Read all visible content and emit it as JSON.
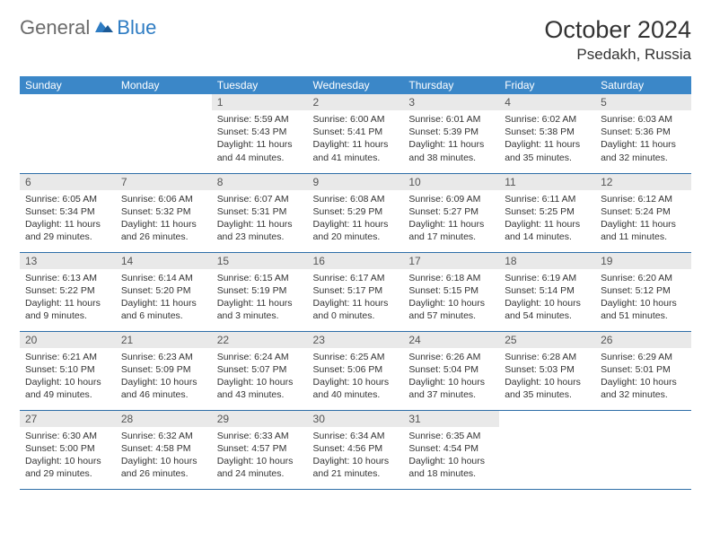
{
  "brand": {
    "part1": "General",
    "part2": "Blue"
  },
  "header": {
    "title": "October 2024",
    "location": "Psedakh, Russia"
  },
  "colors": {
    "header_bg": "#3b87c8",
    "header_text": "#ffffff",
    "daynum_bg": "#e9e9e9",
    "border": "#2e6ea8",
    "brand_gray": "#6b6b6b",
    "brand_blue": "#2e7cc3"
  },
  "weekdays": [
    "Sunday",
    "Monday",
    "Tuesday",
    "Wednesday",
    "Thursday",
    "Friday",
    "Saturday"
  ],
  "weeks": [
    [
      null,
      null,
      {
        "n": "1",
        "sr": "Sunrise: 5:59 AM",
        "ss": "Sunset: 5:43 PM",
        "dl": "Daylight: 11 hours and 44 minutes."
      },
      {
        "n": "2",
        "sr": "Sunrise: 6:00 AM",
        "ss": "Sunset: 5:41 PM",
        "dl": "Daylight: 11 hours and 41 minutes."
      },
      {
        "n": "3",
        "sr": "Sunrise: 6:01 AM",
        "ss": "Sunset: 5:39 PM",
        "dl": "Daylight: 11 hours and 38 minutes."
      },
      {
        "n": "4",
        "sr": "Sunrise: 6:02 AM",
        "ss": "Sunset: 5:38 PM",
        "dl": "Daylight: 11 hours and 35 minutes."
      },
      {
        "n": "5",
        "sr": "Sunrise: 6:03 AM",
        "ss": "Sunset: 5:36 PM",
        "dl": "Daylight: 11 hours and 32 minutes."
      }
    ],
    [
      {
        "n": "6",
        "sr": "Sunrise: 6:05 AM",
        "ss": "Sunset: 5:34 PM",
        "dl": "Daylight: 11 hours and 29 minutes."
      },
      {
        "n": "7",
        "sr": "Sunrise: 6:06 AM",
        "ss": "Sunset: 5:32 PM",
        "dl": "Daylight: 11 hours and 26 minutes."
      },
      {
        "n": "8",
        "sr": "Sunrise: 6:07 AM",
        "ss": "Sunset: 5:31 PM",
        "dl": "Daylight: 11 hours and 23 minutes."
      },
      {
        "n": "9",
        "sr": "Sunrise: 6:08 AM",
        "ss": "Sunset: 5:29 PM",
        "dl": "Daylight: 11 hours and 20 minutes."
      },
      {
        "n": "10",
        "sr": "Sunrise: 6:09 AM",
        "ss": "Sunset: 5:27 PM",
        "dl": "Daylight: 11 hours and 17 minutes."
      },
      {
        "n": "11",
        "sr": "Sunrise: 6:11 AM",
        "ss": "Sunset: 5:25 PM",
        "dl": "Daylight: 11 hours and 14 minutes."
      },
      {
        "n": "12",
        "sr": "Sunrise: 6:12 AM",
        "ss": "Sunset: 5:24 PM",
        "dl": "Daylight: 11 hours and 11 minutes."
      }
    ],
    [
      {
        "n": "13",
        "sr": "Sunrise: 6:13 AM",
        "ss": "Sunset: 5:22 PM",
        "dl": "Daylight: 11 hours and 9 minutes."
      },
      {
        "n": "14",
        "sr": "Sunrise: 6:14 AM",
        "ss": "Sunset: 5:20 PM",
        "dl": "Daylight: 11 hours and 6 minutes."
      },
      {
        "n": "15",
        "sr": "Sunrise: 6:15 AM",
        "ss": "Sunset: 5:19 PM",
        "dl": "Daylight: 11 hours and 3 minutes."
      },
      {
        "n": "16",
        "sr": "Sunrise: 6:17 AM",
        "ss": "Sunset: 5:17 PM",
        "dl": "Daylight: 11 hours and 0 minutes."
      },
      {
        "n": "17",
        "sr": "Sunrise: 6:18 AM",
        "ss": "Sunset: 5:15 PM",
        "dl": "Daylight: 10 hours and 57 minutes."
      },
      {
        "n": "18",
        "sr": "Sunrise: 6:19 AM",
        "ss": "Sunset: 5:14 PM",
        "dl": "Daylight: 10 hours and 54 minutes."
      },
      {
        "n": "19",
        "sr": "Sunrise: 6:20 AM",
        "ss": "Sunset: 5:12 PM",
        "dl": "Daylight: 10 hours and 51 minutes."
      }
    ],
    [
      {
        "n": "20",
        "sr": "Sunrise: 6:21 AM",
        "ss": "Sunset: 5:10 PM",
        "dl": "Daylight: 10 hours and 49 minutes."
      },
      {
        "n": "21",
        "sr": "Sunrise: 6:23 AM",
        "ss": "Sunset: 5:09 PM",
        "dl": "Daylight: 10 hours and 46 minutes."
      },
      {
        "n": "22",
        "sr": "Sunrise: 6:24 AM",
        "ss": "Sunset: 5:07 PM",
        "dl": "Daylight: 10 hours and 43 minutes."
      },
      {
        "n": "23",
        "sr": "Sunrise: 6:25 AM",
        "ss": "Sunset: 5:06 PM",
        "dl": "Daylight: 10 hours and 40 minutes."
      },
      {
        "n": "24",
        "sr": "Sunrise: 6:26 AM",
        "ss": "Sunset: 5:04 PM",
        "dl": "Daylight: 10 hours and 37 minutes."
      },
      {
        "n": "25",
        "sr": "Sunrise: 6:28 AM",
        "ss": "Sunset: 5:03 PM",
        "dl": "Daylight: 10 hours and 35 minutes."
      },
      {
        "n": "26",
        "sr": "Sunrise: 6:29 AM",
        "ss": "Sunset: 5:01 PM",
        "dl": "Daylight: 10 hours and 32 minutes."
      }
    ],
    [
      {
        "n": "27",
        "sr": "Sunrise: 6:30 AM",
        "ss": "Sunset: 5:00 PM",
        "dl": "Daylight: 10 hours and 29 minutes."
      },
      {
        "n": "28",
        "sr": "Sunrise: 6:32 AM",
        "ss": "Sunset: 4:58 PM",
        "dl": "Daylight: 10 hours and 26 minutes."
      },
      {
        "n": "29",
        "sr": "Sunrise: 6:33 AM",
        "ss": "Sunset: 4:57 PM",
        "dl": "Daylight: 10 hours and 24 minutes."
      },
      {
        "n": "30",
        "sr": "Sunrise: 6:34 AM",
        "ss": "Sunset: 4:56 PM",
        "dl": "Daylight: 10 hours and 21 minutes."
      },
      {
        "n": "31",
        "sr": "Sunrise: 6:35 AM",
        "ss": "Sunset: 4:54 PM",
        "dl": "Daylight: 10 hours and 18 minutes."
      },
      null,
      null
    ]
  ]
}
